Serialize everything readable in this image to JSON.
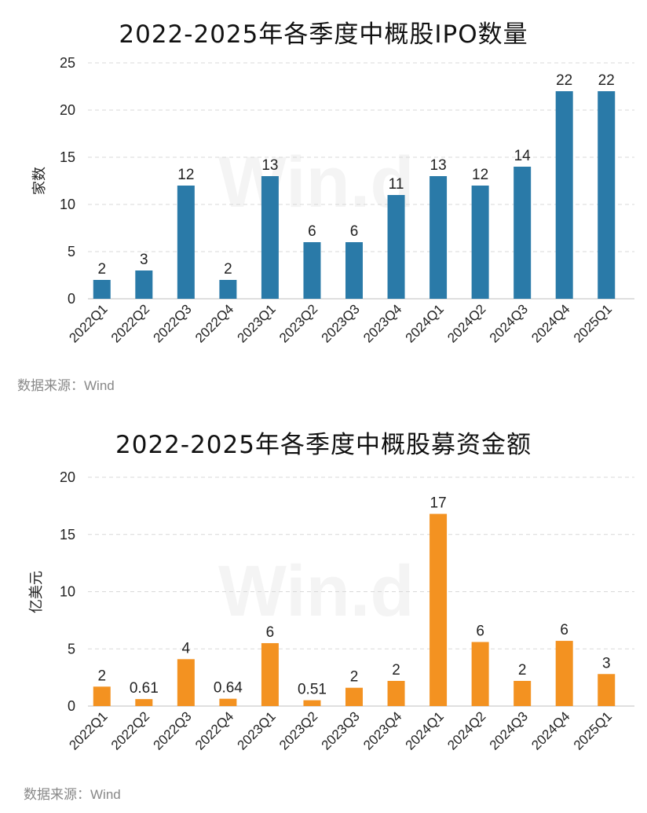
{
  "source_label": "数据来源：Wind",
  "watermark": "Win.d",
  "chart_data": [
    {
      "type": "bar",
      "title": "2022-2025年各季度中概股IPO数量",
      "ylabel": "家数",
      "xlabel": "",
      "ylim": [
        0,
        25
      ],
      "yticks": [
        0,
        5,
        10,
        15,
        20,
        25
      ],
      "grid": true,
      "color": "#2A7AA8",
      "categories": [
        "2022Q1",
        "2022Q2",
        "2022Q3",
        "2022Q4",
        "2023Q1",
        "2023Q2",
        "2023Q3",
        "2023Q4",
        "2024Q1",
        "2024Q2",
        "2024Q3",
        "2024Q4",
        "2025Q1"
      ],
      "values": [
        2,
        3,
        12,
        2,
        13,
        6,
        6,
        11,
        13,
        12,
        14,
        22,
        22
      ],
      "labels": [
        "2",
        "3",
        "12",
        "2",
        "13",
        "6",
        "6",
        "11",
        "13",
        "12",
        "14",
        "22",
        "22"
      ]
    },
    {
      "type": "bar",
      "title": "2022-2025年各季度中概股募资金额",
      "ylabel": "亿美元",
      "xlabel": "",
      "ylim": [
        0,
        20
      ],
      "yticks": [
        0,
        5,
        10,
        15,
        20
      ],
      "grid": true,
      "color": "#F39221",
      "categories": [
        "2022Q1",
        "2022Q2",
        "2022Q3",
        "2022Q4",
        "2023Q1",
        "2023Q2",
        "2023Q3",
        "2023Q4",
        "2024Q1",
        "2024Q2",
        "2024Q3",
        "2024Q4",
        "2025Q1"
      ],
      "values": [
        1.7,
        0.61,
        4.1,
        0.64,
        5.5,
        0.51,
        1.6,
        2.2,
        16.8,
        5.6,
        2.2,
        5.7,
        2.8
      ],
      "labels": [
        "2",
        "0.61",
        "4",
        "0.64",
        "6",
        "0.51",
        "2",
        "2",
        "17",
        "6",
        "2",
        "6",
        "3"
      ]
    }
  ]
}
